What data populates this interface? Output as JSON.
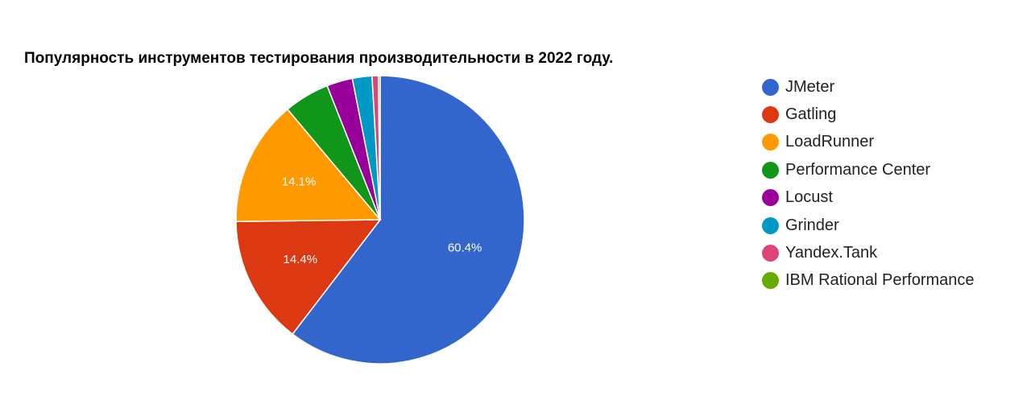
{
  "chart_data": {
    "type": "pie",
    "title": "Популярность инструментов тестирования производительности в 2022 году.",
    "legend_position": "right",
    "slices": [
      {
        "name": "JMeter",
        "value": 60.4,
        "label": "60.4%",
        "color": "#3366cc"
      },
      {
        "name": "Gatling",
        "value": 14.4,
        "label": "14.4%",
        "color": "#dc3912"
      },
      {
        "name": "LoadRunner",
        "value": 14.1,
        "label": "14.1%",
        "color": "#ff9900"
      },
      {
        "name": "Performance Center",
        "value": 5.1,
        "label": "",
        "color": "#109618"
      },
      {
        "name": "Locust",
        "value": 2.9,
        "label": "",
        "color": "#990099"
      },
      {
        "name": "Grinder",
        "value": 2.2,
        "label": "",
        "color": "#0099c6"
      },
      {
        "name": "Yandex.Tank",
        "value": 0.7,
        "label": "",
        "color": "#dd4477"
      },
      {
        "name": "IBM Rational Performance",
        "value": 0.2,
        "label": "",
        "color": "#66aa00"
      }
    ]
  }
}
